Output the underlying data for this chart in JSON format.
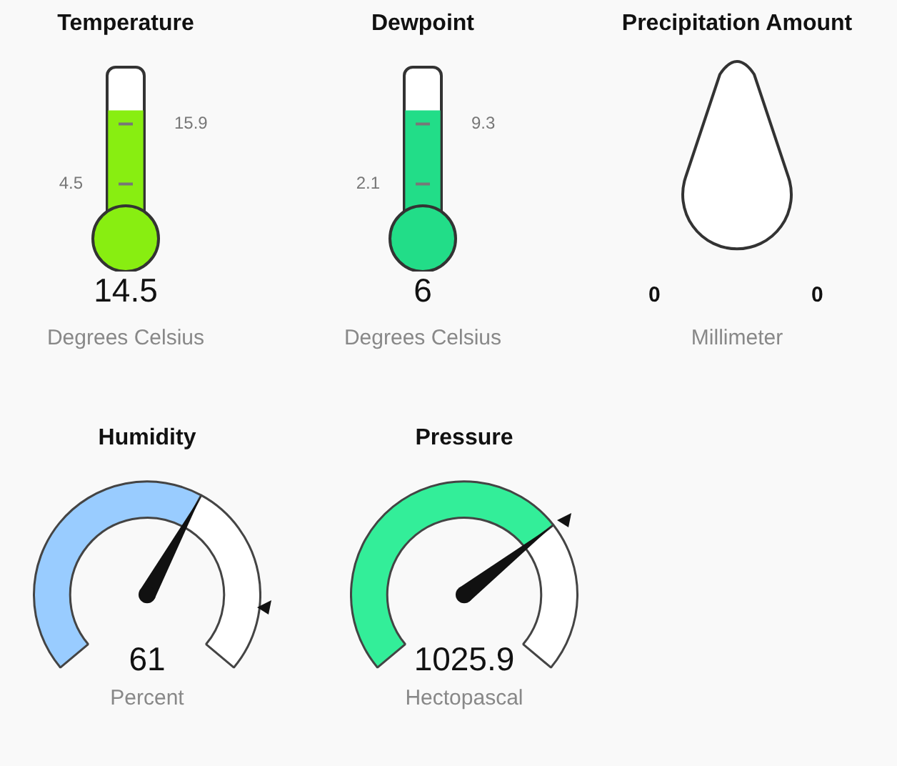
{
  "chart_data": [
    {
      "type": "other",
      "title": "Temperature",
      "values": [
        14.5
      ],
      "color": "#88ee11",
      "data_labels": true,
      "xlabel": "Degrees Celsius",
      "annotations": [
        "4.5",
        "15.9"
      ]
    },
    {
      "type": "other",
      "title": "Dewpoint",
      "values": [
        6
      ],
      "color": "#22dd88",
      "data_labels": true,
      "xlabel": "Degrees Celsius",
      "annotations": [
        "2.1",
        "9.3"
      ]
    },
    {
      "type": "other",
      "title": "Precipitation Amount",
      "annotations": [
        "0",
        "0"
      ],
      "xlabel": "Millimeter"
    },
    {
      "type": "donut",
      "title": "Humidity",
      "categories": [
        null,
        null
      ],
      "values": [
        61,
        39
      ],
      "colors": [
        "#99ccff",
        "#ffffff"
      ],
      "annotations": [
        "61"
      ],
      "xlabel": "Percent"
    },
    {
      "type": "donut",
      "title": "Pressure",
      "categories": [
        null,
        null
      ],
      "values": [
        70,
        30
      ],
      "colors": [
        "#33ee99",
        "#ffffff"
      ],
      "annotations": [
        "1025.9"
      ],
      "xlabel": "Hectopascal"
    }
  ]
}
